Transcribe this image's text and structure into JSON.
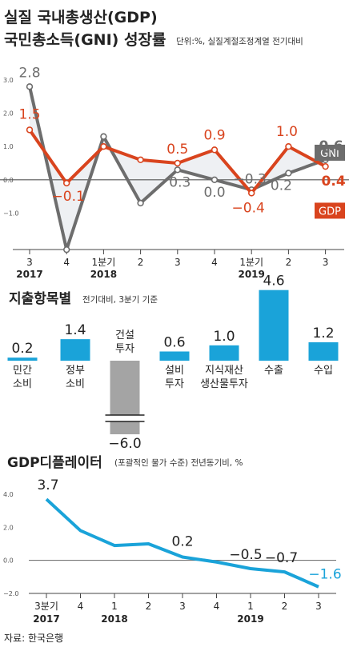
{
  "chart_data": [
    {
      "type": "line",
      "title": "실질 국내총생산(GDP)",
      "subtitle": "국민총소득(GNI) 성장률",
      "note": "단위:%, 실질계절조정계열 전기대비",
      "x_labels": [
        "3",
        "4",
        "1분기",
        "2",
        "3",
        "4",
        "1분기",
        "2",
        "3"
      ],
      "year_labels": [
        {
          "index": 0,
          "label": "2017"
        },
        {
          "index": 2,
          "label": "2018"
        },
        {
          "index": 6,
          "label": "2019"
        }
      ],
      "y_ticks": [
        "3.0",
        "2.0",
        "1.0",
        "0.0",
        "−1.0"
      ],
      "ylim": [
        -2.0,
        3.0
      ],
      "series": [
        {
          "name": "GNI",
          "color": "#6d6d6d",
          "values": [
            2.8,
            -2.1,
            1.3,
            -0.7,
            0.3,
            0.0,
            -0.3,
            0.2,
            0.6
          ]
        },
        {
          "name": "GDP",
          "color": "#d9441e",
          "values": [
            1.5,
            -0.1,
            1.0,
            0.6,
            0.5,
            0.9,
            -0.4,
            1.0,
            0.4
          ]
        }
      ],
      "data_labels": [
        {
          "series": "GNI",
          "index": 0,
          "text": "2.8"
        },
        {
          "series": "GNI",
          "index": 4,
          "text": "0.3"
        },
        {
          "series": "GNI",
          "index": 5,
          "text": "0.0"
        },
        {
          "series": "GNI",
          "index": 6,
          "text": "−0.3"
        },
        {
          "series": "GNI",
          "index": 7,
          "text": "0.2"
        },
        {
          "series": "GNI",
          "index": 8,
          "text": "0.6"
        },
        {
          "series": "GDP",
          "index": 0,
          "text": "1.5"
        },
        {
          "series": "GDP",
          "index": 1,
          "text": "−0.1"
        },
        {
          "series": "GDP",
          "index": 4,
          "text": "0.5"
        },
        {
          "series": "GDP",
          "index": 5,
          "text": "0.9"
        },
        {
          "series": "GDP",
          "index": 6,
          "text": "−0.4"
        },
        {
          "series": "GDP",
          "index": 7,
          "text": "1.0"
        },
        {
          "series": "GDP",
          "index": 8,
          "text": "0.4"
        }
      ],
      "fill_color": "#eef0f3"
    },
    {
      "type": "bar",
      "title": "지출항목별",
      "note": "전기대비, 3분기 기준",
      "categories": [
        "민간 소비",
        "정부 소비",
        "건설 투자",
        "설비 투자",
        "지식재산 생산물투자",
        "수출",
        "수입"
      ],
      "category_lines": [
        [
          "민간",
          "소비"
        ],
        [
          "정부",
          "소비"
        ],
        [
          "건설",
          "투자"
        ],
        [
          "설비",
          "투자"
        ],
        [
          "지식재산",
          "생산물투자"
        ],
        [
          "수출"
        ],
        [
          "수입"
        ]
      ],
      "values": [
        0.2,
        1.4,
        -6.0,
        0.6,
        1.0,
        4.6,
        1.2
      ],
      "value_labels": [
        "0.2",
        "1.4",
        "−6.0",
        "0.6",
        "1.0",
        "4.6",
        "1.2"
      ],
      "axis_break": true,
      "positive_color": "#1aa3d9",
      "negative_color": "#a4a4a4"
    },
    {
      "type": "line",
      "title": "GDP디플레이터",
      "note": "(포괄적인 물가 수준) 전년동기비, %",
      "x_labels": [
        "3분기",
        "4",
        "1",
        "2",
        "3",
        "4",
        "1",
        "2",
        "3"
      ],
      "year_labels": [
        {
          "index": 0,
          "label": "2017"
        },
        {
          "index": 2,
          "label": "2018"
        },
        {
          "index": 6,
          "label": "2019"
        }
      ],
      "y_ticks": [
        "4.0",
        "2.0",
        "0.0",
        "−2.0"
      ],
      "ylim": [
        -2.0,
        4.0
      ],
      "series": [
        {
          "name": "",
          "color": "#1aa3d9",
          "values": [
            3.7,
            1.8,
            0.9,
            1.0,
            0.2,
            -0.1,
            -0.5,
            -0.7,
            -1.6
          ]
        }
      ],
      "data_labels": [
        {
          "index": 0,
          "text": "3.7"
        },
        {
          "index": 4,
          "text": "0.2"
        },
        {
          "index": 6,
          "text": "−0.5"
        },
        {
          "index": 7,
          "text": "−0.7"
        },
        {
          "index": 8,
          "text": "−1.6"
        }
      ]
    }
  ],
  "source": "자료: 한국은행"
}
